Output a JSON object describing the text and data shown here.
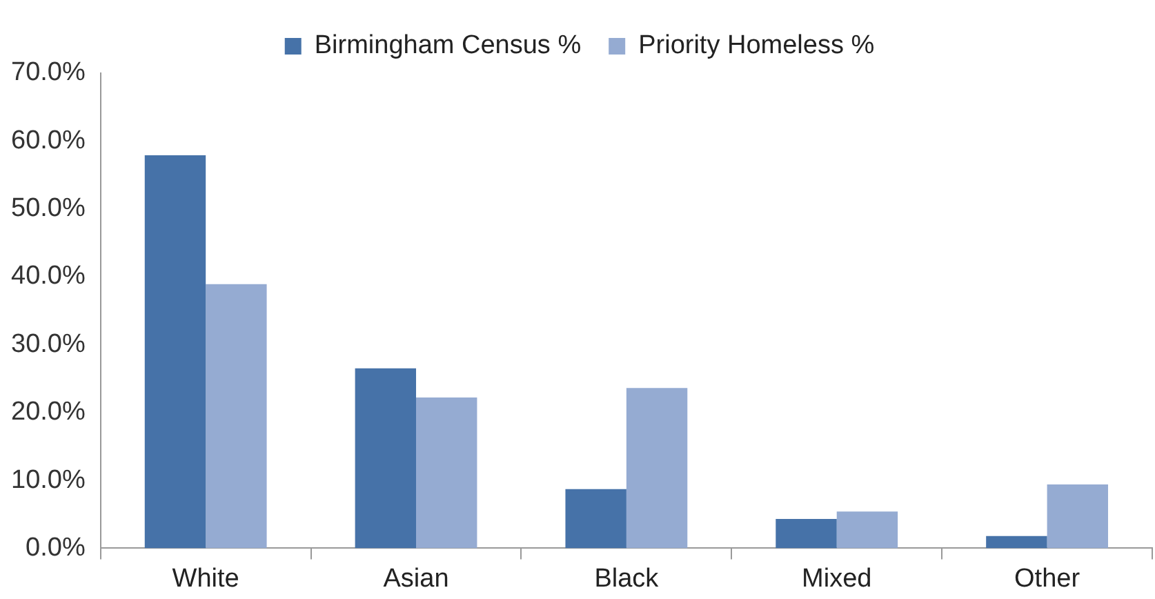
{
  "chart_data": {
    "type": "bar",
    "categories": [
      "White",
      "Asian",
      "Black",
      "Mixed",
      "Other"
    ],
    "series": [
      {
        "name": "Birmingham Census %",
        "color": "#4672a8",
        "values": [
          57.9,
          26.5,
          8.7,
          4.3,
          1.8
        ]
      },
      {
        "name": "Priority Homeless %",
        "color": "#95abd2",
        "values": [
          38.9,
          22.2,
          23.6,
          5.4,
          9.4
        ]
      }
    ],
    "ylim": [
      0,
      70
    ],
    "yticks": [
      {
        "value": 0,
        "label": "0.0%"
      },
      {
        "value": 10,
        "label": "10.0%"
      },
      {
        "value": 20,
        "label": "20.0%"
      },
      {
        "value": 30,
        "label": "30.0%"
      },
      {
        "value": 40,
        "label": "40.0%"
      },
      {
        "value": 50,
        "label": "50.0%"
      },
      {
        "value": 60,
        "label": "60.0%"
      },
      {
        "value": 70,
        "label": "70.0%"
      }
    ],
    "grid": false,
    "legend": "top"
  }
}
